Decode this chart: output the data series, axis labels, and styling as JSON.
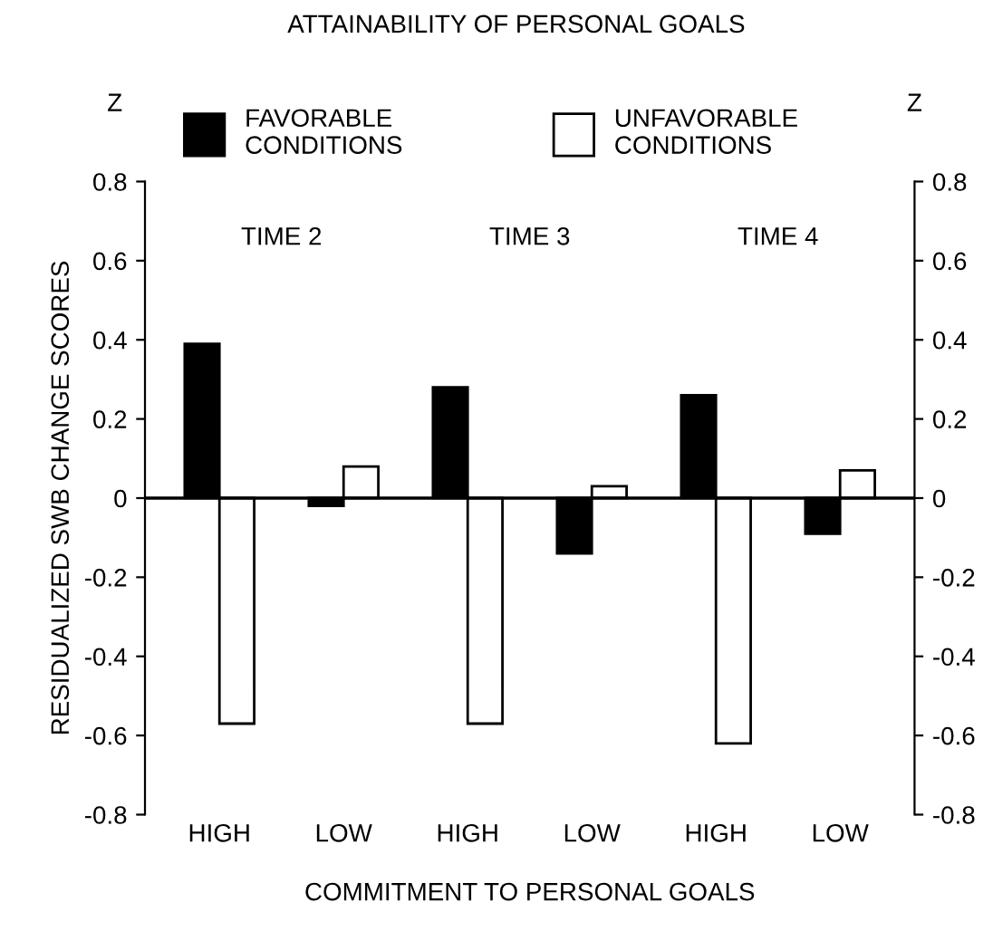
{
  "chart_data": {
    "type": "bar",
    "title": "ATTAINABILITY OF PERSONAL GOALS",
    "xlabel": "COMMITMENT TO PERSONAL GOALS",
    "ylabel": "RESIDUALIZED SWB CHANGE SCORES",
    "y2label": "Z",
    "categories": [
      "HIGH",
      "LOW",
      "HIGH",
      "LOW",
      "HIGH",
      "LOW"
    ],
    "series": [
      {
        "name": "FAVORABLE\nCONDITIONS",
        "color": "#000000",
        "values": [
          0.39,
          -0.02,
          0.28,
          -0.14,
          0.26,
          -0.09
        ]
      },
      {
        "name": "UNFAVORABLE\nCONDITIONS",
        "color": "#ffffff",
        "values": [
          -0.57,
          0.08,
          -0.57,
          0.03,
          -0.62,
          0.07
        ]
      }
    ],
    "annotations": [
      "Z",
      "TIME 2",
      "TIME 3",
      "TIME 4"
    ],
    "ref_lines": [
      {
        "axis": "y",
        "value": 0,
        "color": "#000000"
      }
    ],
    "ylim": [
      -0.8,
      0.8
    ],
    "yticks": [
      -0.8,
      -0.6,
      -0.4,
      -0.2,
      0,
      0.2,
      0.4,
      0.6,
      0.8
    ],
    "y2lim": [
      -0.8,
      0.8
    ],
    "y2ticks": [
      -0.8,
      -0.6,
      -0.4,
      -0.2,
      0,
      0.2,
      0.4,
      0.6,
      0.8
    ],
    "legend": "top",
    "grid": false
  }
}
